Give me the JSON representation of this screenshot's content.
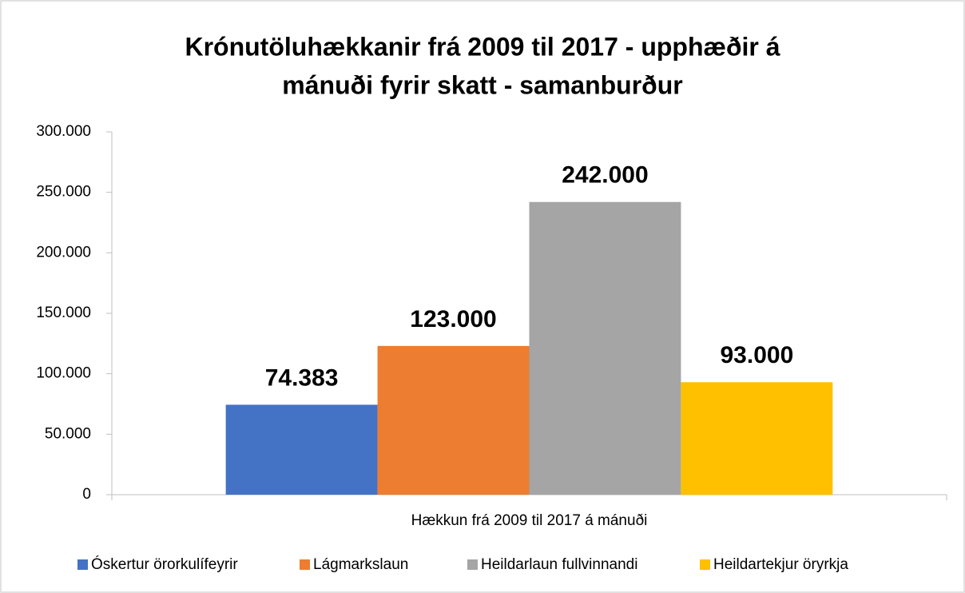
{
  "chart_data": {
    "type": "bar",
    "title": [
      "Krónutöluhækkanir frá 2009 til 2017  - upphæðir á",
      "mánuði fyrir skatt - samanburður"
    ],
    "categories": [
      "Hækkun frá 2009 til 2017 á mánuði"
    ],
    "series": [
      {
        "name": "Óskertur örorkulífeyrir",
        "color": "#4472c4",
        "values": [
          74383
        ],
        "value_labels": [
          "74.383"
        ]
      },
      {
        "name": "Lágmarkslaun",
        "color": "#ed7d31",
        "values": [
          123000
        ],
        "value_labels": [
          "123.000"
        ]
      },
      {
        "name": "Heildarlaun fullvinnandi",
        "color": "#a5a5a5",
        "values": [
          242000
        ],
        "value_labels": [
          "242.000"
        ]
      },
      {
        "name": "Heildartekjur öryrkja",
        "color": "#ffc000",
        "values": [
          93000
        ],
        "value_labels": [
          "93.000"
        ]
      }
    ],
    "ylim": [
      0,
      300000
    ],
    "yticks": [
      0,
      {
        "value": 50000,
        "label": "50.000"
      },
      {
        "value": 100000,
        "label": "100.000"
      },
      {
        "value": 150000,
        "label": "150.000"
      },
      {
        "value": 200000,
        "label": "200.000"
      },
      {
        "value": 250000,
        "label": "250.000"
      },
      {
        "value": 300000,
        "label": "300.000"
      }
    ],
    "legend": "bottom"
  }
}
